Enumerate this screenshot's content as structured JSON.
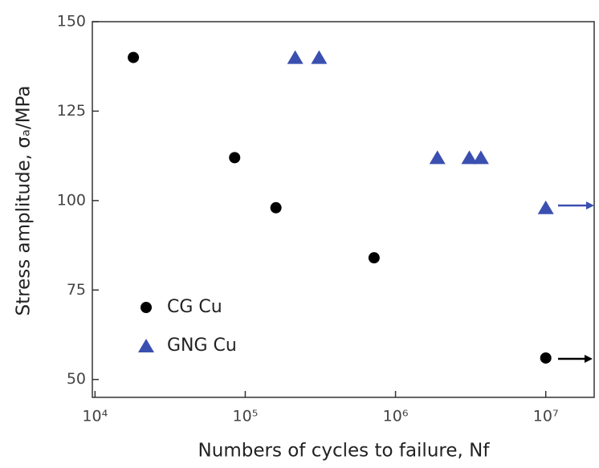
{
  "chart_data": {
    "type": "scatter",
    "x_label": "Numbers of cycles to failure, Nf",
    "y_label": "Stress amplitude, σₐ/MPa",
    "x_log": true,
    "xlim": [
      9600,
      21000000
    ],
    "ylim": [
      45,
      150
    ],
    "xticks": [
      {
        "value": 10000,
        "label": "10⁴"
      },
      {
        "value": 100000,
        "label": "10⁵"
      },
      {
        "value": 1000000,
        "label": "10⁶"
      },
      {
        "value": 10000000,
        "label": "10⁷"
      }
    ],
    "yticks": [
      50,
      75,
      100,
      125,
      150
    ],
    "legend": "left",
    "series": [
      {
        "name": "CG Cu",
        "color": "#000000",
        "marker": "circle",
        "x": [
          18000,
          85000,
          160000,
          720000,
          10000000
        ],
        "values": [
          140,
          112,
          98,
          84,
          56
        ]
      },
      {
        "name": "GNG Cu",
        "color": "#3a4fb0",
        "marker": "triangle",
        "x": [
          215000,
          310000,
          1900000,
          3100000,
          3700000,
          10000000
        ],
        "values": [
          140,
          140,
          112,
          112,
          112,
          98
        ]
      }
    ]
  }
}
